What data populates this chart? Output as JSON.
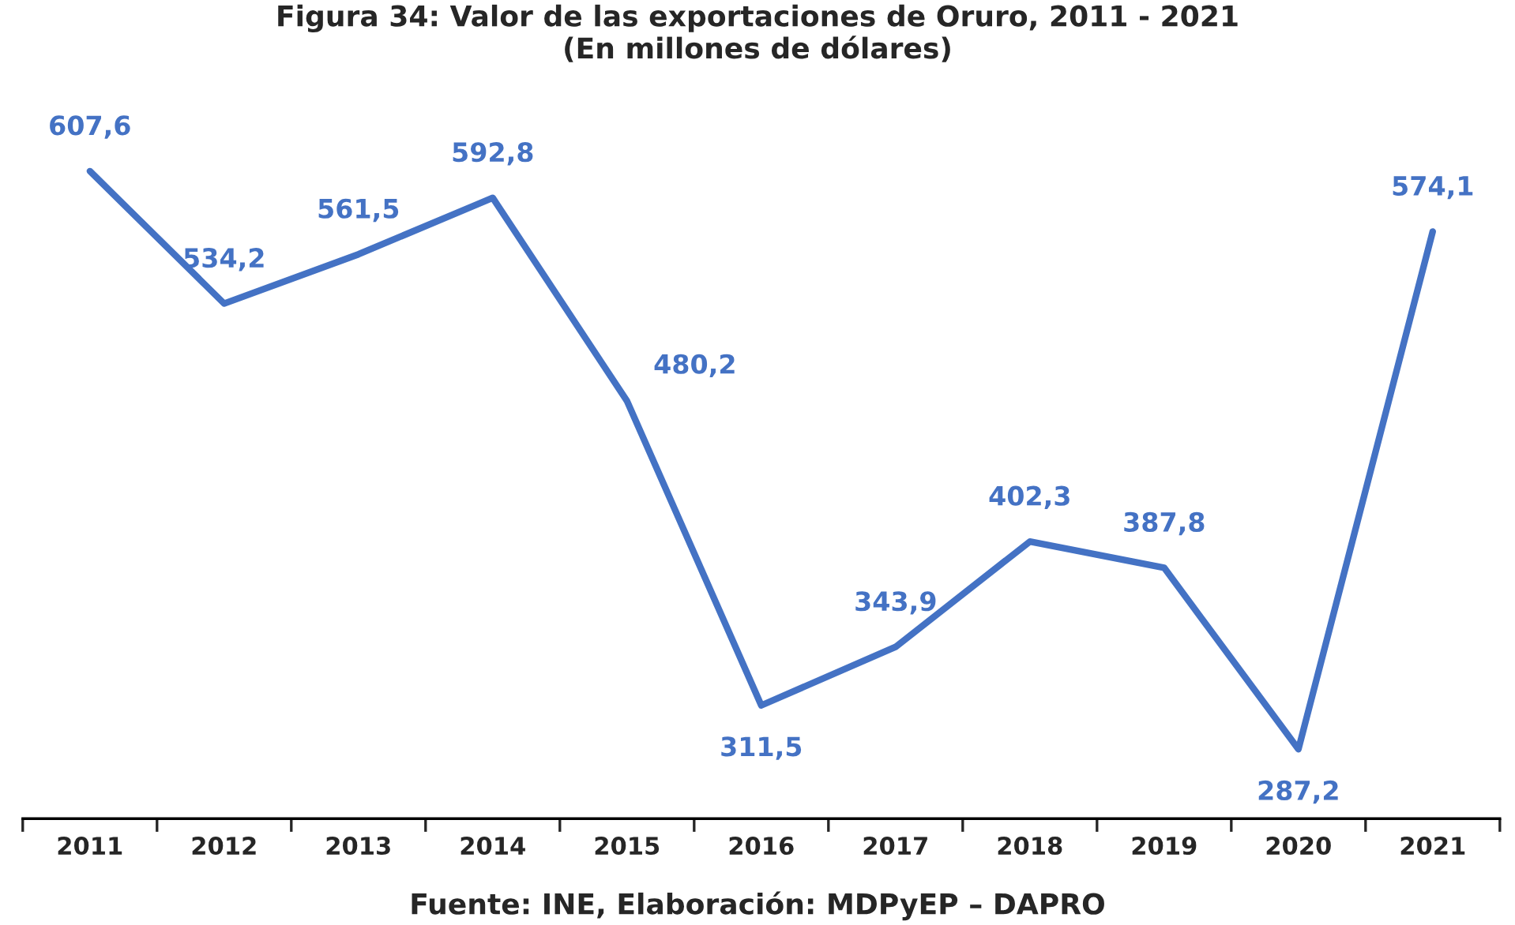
{
  "chart_data": {
    "type": "line",
    "title": "Figura 34: Valor de las exportaciones de Oruro, 2011 - 2021\n(En millones de dólares)",
    "categories": [
      "2011",
      "2012",
      "2013",
      "2014",
      "2015",
      "2016",
      "2017",
      "2018",
      "2019",
      "2020",
      "2021"
    ],
    "series": [
      {
        "color": "#4472c4",
        "values": [
          607.6,
          534.2,
          561.5,
          592.8,
          480.2,
          311.5,
          343.9,
          402.3,
          387.8,
          287.2,
          574.1
        ],
        "value_labels": [
          "607,6",
          "534,2",
          "561,5",
          "592,8",
          "480,2",
          "311,5",
          "343,9",
          "402,3",
          "387,8",
          "287,2",
          "574,1"
        ]
      }
    ],
    "marker": "none",
    "line_style": "solid",
    "grid": false,
    "legend": false,
    "tick_labels": "x",
    "annotations": [
      "Fuente: INE, Elaboración: MDPyEP – DAPRO"
    ]
  }
}
